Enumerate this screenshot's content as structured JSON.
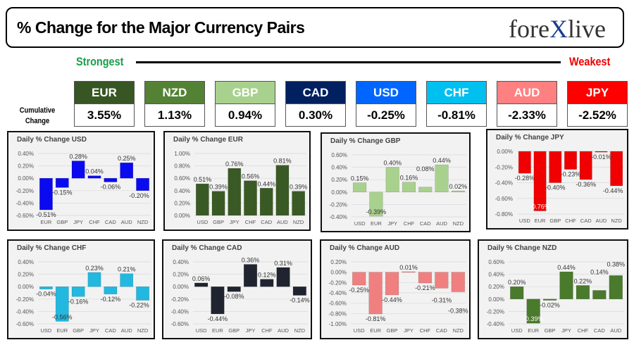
{
  "header": {
    "title": "% Change for the Major Currency Pairs",
    "logo": "forexlive",
    "strongest": "Strongest",
    "weakest": "Weakest",
    "cumulative_label": "Cumulative Change"
  },
  "cumulative": [
    {
      "currency": "EUR",
      "value": "3.55%",
      "color": "#375623"
    },
    {
      "currency": "NZD",
      "value": "1.13%",
      "color": "#548235"
    },
    {
      "currency": "GBP",
      "value": "0.94%",
      "color": "#a9d18e"
    },
    {
      "currency": "CAD",
      "value": "0.30%",
      "color": "#002060"
    },
    {
      "currency": "USD",
      "value": "-0.25%",
      "color": "#0066ff"
    },
    {
      "currency": "CHF",
      "value": "-0.81%",
      "color": "#00c0f0"
    },
    {
      "currency": "AUD",
      "value": "-2.33%",
      "color": "#ff8080"
    },
    {
      "currency": "JPY",
      "value": "-2.52%",
      "color": "#ff0000"
    }
  ],
  "chart_data": [
    {
      "type": "bar",
      "title": "Daily % Change USD",
      "color": "#0a0af0",
      "categories": [
        "EUR",
        "GBP",
        "JPY",
        "CHF",
        "CAD",
        "AUD",
        "NZD"
      ],
      "values": [
        -0.51,
        -0.15,
        0.28,
        0.04,
        -0.06,
        0.25,
        -0.2
      ],
      "ylim": [
        -0.6,
        0.4
      ]
    },
    {
      "type": "bar",
      "title": "Daily % Change EUR",
      "color": "#3a5a25",
      "categories": [
        "USD",
        "GBP",
        "JPY",
        "CHF",
        "CAD",
        "AUD",
        "NZD"
      ],
      "values": [
        0.51,
        0.39,
        0.76,
        0.56,
        0.44,
        0.81,
        0.39
      ],
      "ylim": [
        0,
        1.0
      ]
    },
    {
      "type": "bar",
      "title": "Daily % Change GBP",
      "color": "#a9d18e",
      "categories": [
        "USD",
        "EUR",
        "JPY",
        "CHF",
        "CAD",
        "AUD",
        "NZD"
      ],
      "values": [
        0.15,
        -0.39,
        0.4,
        0.16,
        0.08,
        0.44,
        0.02
      ],
      "ylim": [
        -0.4,
        0.6
      ]
    },
    {
      "type": "bar",
      "title": "Daily % Change JPY",
      "color": "#f00000",
      "categories": [
        "USD",
        "EUR",
        "GBP",
        "CHF",
        "CAD",
        "AUD",
        "NZD"
      ],
      "values": [
        -0.28,
        -0.76,
        -0.4,
        -0.23,
        -0.36,
        -0.01,
        -0.44
      ],
      "ylim": [
        -0.8,
        0
      ]
    },
    {
      "type": "bar",
      "title": "Daily % Change CHF",
      "color": "#22b8e0",
      "categories": [
        "USD",
        "EUR",
        "GBP",
        "JPY",
        "CAD",
        "AUD",
        "NZD"
      ],
      "values": [
        -0.04,
        -0.56,
        -0.16,
        0.23,
        -0.12,
        0.21,
        -0.22
      ],
      "ylim": [
        -0.6,
        0.4
      ]
    },
    {
      "type": "bar",
      "title": "Daily % Change CAD",
      "color": "#1f2430",
      "categories": [
        "USD",
        "EUR",
        "GBP",
        "JPY",
        "CHF",
        "AUD",
        "NZD"
      ],
      "values": [
        0.06,
        -0.44,
        -0.08,
        0.36,
        0.12,
        0.31,
        -0.14
      ],
      "ylim": [
        -0.6,
        0.4
      ]
    },
    {
      "type": "bar",
      "title": "Daily % Change AUD",
      "color": "#f08080",
      "categories": [
        "USD",
        "EUR",
        "GBP",
        "JPY",
        "CHF",
        "CAD",
        "NZD"
      ],
      "values": [
        -0.25,
        -0.81,
        -0.44,
        0.01,
        -0.21,
        -0.31,
        -0.38
      ],
      "ylim": [
        -1.0,
        0.2
      ]
    },
    {
      "type": "bar",
      "title": "Daily % Change NZD",
      "color": "#4a7a2c",
      "categories": [
        "USD",
        "EUR",
        "GBP",
        "JPY",
        "CHF",
        "CAD",
        "AUD"
      ],
      "values": [
        0.2,
        -0.39,
        -0.02,
        0.44,
        0.22,
        0.14,
        0.38
      ],
      "ylim": [
        -0.4,
        0.6
      ]
    }
  ]
}
